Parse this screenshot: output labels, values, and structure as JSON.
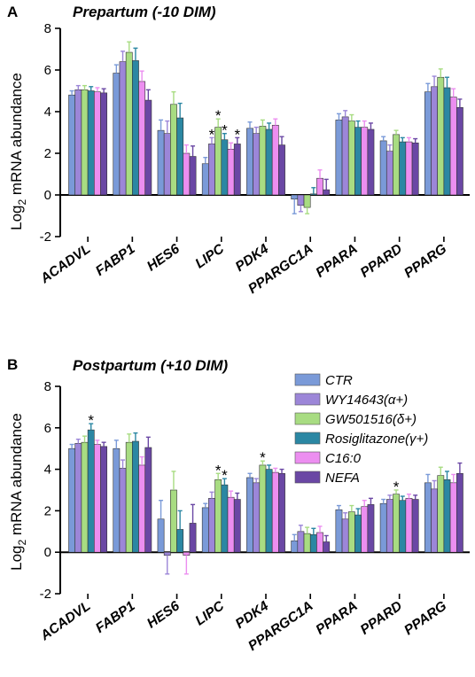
{
  "figure": {
    "ylabel_main": "Log",
    "ylabel_sub": "2",
    "ylabel_rest": " mRNA abundance"
  },
  "colors": {
    "CTR": "#7a9ad8",
    "WY14643(α+)": "#9c86d8",
    "GW501516(δ+)": "#a8dc82",
    "Rosiglitazone(γ+)": "#2b87a3",
    "C16:0": "#ec8ef0",
    "NEFA": "#6a47a4"
  },
  "legend": [
    "CTR",
    "WY14643(α+)",
    "GW501516(δ+)",
    "Rosiglitazone(γ+)",
    "C16:0",
    "NEFA"
  ],
  "chart_data": [
    {
      "type": "bar",
      "panel": "A",
      "title": "Prepartum (-10  DIM)",
      "ylabel": "Log2 mRNA abundance",
      "ylim": [
        -2,
        8
      ],
      "yticks": [
        -2,
        0,
        2,
        4,
        6,
        8
      ],
      "categories": [
        "ACADVL",
        "FABP1",
        "HES6",
        "LIPC",
        "PDK4",
        "PPARGC1A",
        "PPARA",
        "PPARD",
        "PPARG"
      ],
      "series": [
        {
          "name": "CTR",
          "values": [
            4.8,
            5.85,
            3.1,
            1.5,
            3.2,
            -0.2,
            3.6,
            2.6,
            4.95
          ],
          "errors": [
            0.2,
            0.4,
            0.5,
            0.3,
            0.3,
            0.7,
            0.3,
            0.2,
            0.4
          ]
        },
        {
          "name": "WY14643(α+)",
          "values": [
            5.05,
            6.4,
            2.95,
            2.45,
            2.95,
            -0.5,
            3.75,
            2.1,
            5.2
          ],
          "errors": [
            0.2,
            0.5,
            0.6,
            0.3,
            0.3,
            0.3,
            0.3,
            0.3,
            0.5
          ]
        },
        {
          "name": "GW501516(δ+)",
          "values": [
            5.05,
            6.85,
            4.35,
            3.25,
            3.3,
            -0.6,
            3.55,
            2.9,
            5.65
          ],
          "errors": [
            0.2,
            0.5,
            0.6,
            0.4,
            0.3,
            0.3,
            0.3,
            0.2,
            0.4
          ]
        },
        {
          "name": "Rosiglitazone(γ+)",
          "values": [
            5.0,
            6.45,
            3.7,
            2.65,
            3.15,
            0.05,
            3.25,
            2.55,
            5.15
          ],
          "errors": [
            0.2,
            0.6,
            0.7,
            0.3,
            0.3,
            0.3,
            0.3,
            0.2,
            0.5
          ]
        },
        {
          "name": "C16:0",
          "values": [
            4.95,
            5.45,
            2.0,
            2.2,
            3.35,
            0.8,
            3.25,
            2.55,
            4.7
          ],
          "errors": [
            0.2,
            0.5,
            0.4,
            0.3,
            0.3,
            0.4,
            0.3,
            0.2,
            0.4
          ]
        },
        {
          "name": "NEFA",
          "values": [
            4.9,
            4.55,
            1.85,
            2.45,
            2.4,
            0.25,
            3.15,
            2.5,
            4.2
          ],
          "errors": [
            0.2,
            0.5,
            0.5,
            0.3,
            0.4,
            0.5,
            0.3,
            0.2,
            0.4
          ]
        }
      ],
      "significance": [
        [
          3,
          1
        ],
        [
          3,
          2
        ],
        [
          3,
          3
        ],
        [
          3,
          5
        ]
      ]
    },
    {
      "type": "bar",
      "panel": "B",
      "title": "Postpartum (+10  DIM)",
      "ylabel": "Log2 mRNA abundance",
      "ylim": [
        -2,
        8
      ],
      "yticks": [
        -2,
        0,
        2,
        4,
        6,
        8
      ],
      "categories": [
        "ACADVL",
        "FABP1",
        "HES6",
        "LIPC",
        "PDK4",
        "PPARGC1A",
        "PPARA",
        "PPARD",
        "PPARG"
      ],
      "series": [
        {
          "name": "CTR",
          "values": [
            5.0,
            5.0,
            1.6,
            2.15,
            3.6,
            0.55,
            2.05,
            2.35,
            3.35
          ],
          "errors": [
            0.2,
            0.4,
            0.9,
            0.2,
            0.2,
            0.3,
            0.2,
            0.2,
            0.4
          ]
        },
        {
          "name": "WY14643(α+)",
          "values": [
            5.25,
            4.05,
            -0.15,
            2.6,
            3.35,
            1.0,
            1.6,
            2.55,
            3.05
          ],
          "errors": [
            0.2,
            0.4,
            0.9,
            0.3,
            0.2,
            0.3,
            0.3,
            0.2,
            0.4
          ]
        },
        {
          "name": "GW501516(δ+)",
          "values": [
            5.3,
            5.3,
            3.0,
            3.5,
            4.2,
            0.9,
            1.95,
            2.8,
            3.7
          ],
          "errors": [
            0.3,
            0.4,
            0.9,
            0.3,
            0.2,
            0.3,
            0.3,
            0.2,
            0.4
          ]
        },
        {
          "name": "Rosiglitazone(γ+)",
          "values": [
            5.9,
            5.35,
            1.1,
            3.25,
            4.0,
            0.85,
            1.8,
            2.5,
            3.5
          ],
          "errors": [
            0.3,
            0.4,
            0.9,
            0.3,
            0.2,
            0.3,
            0.3,
            0.2,
            0.4
          ]
        },
        {
          "name": "C16:0",
          "values": [
            5.2,
            4.2,
            -0.15,
            2.65,
            3.85,
            0.95,
            2.2,
            2.6,
            3.35
          ],
          "errors": [
            0.2,
            0.4,
            0.9,
            0.3,
            0.2,
            0.3,
            0.3,
            0.2,
            0.4
          ]
        },
        {
          "name": "NEFA",
          "values": [
            5.1,
            5.05,
            1.4,
            2.55,
            3.8,
            0.5,
            2.3,
            2.55,
            3.8
          ],
          "errors": [
            0.2,
            0.5,
            0.9,
            0.3,
            0.2,
            0.3,
            0.3,
            0.2,
            0.5
          ]
        }
      ],
      "significance": [
        [
          0,
          3
        ],
        [
          3,
          2
        ],
        [
          3,
          3
        ],
        [
          4,
          2
        ],
        [
          7,
          2
        ]
      ]
    }
  ]
}
